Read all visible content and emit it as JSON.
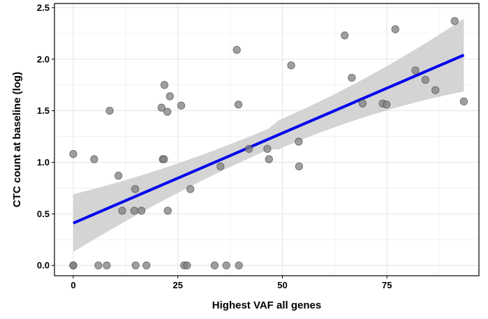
{
  "chart_data": {
    "type": "scatter",
    "title": "",
    "xlabel": "Highest VAF all genes",
    "ylabel": "CTC count at baseline (log)",
    "xlim": [
      -4.5,
      97
    ],
    "ylim": [
      -0.1,
      2.54
    ],
    "x_ticks": [
      0,
      25,
      50,
      75
    ],
    "y_ticks": [
      0.0,
      0.5,
      1.0,
      1.5,
      2.0,
      2.5
    ],
    "x_tick_labels": [
      "0",
      "25",
      "50",
      "75"
    ],
    "y_tick_labels": [
      "0.0",
      "0.5",
      "1.0",
      "1.5",
      "2.0",
      "2.5"
    ],
    "grid": true,
    "legend": "none",
    "point_color": "#7f7f7f",
    "fit_line_color": "#0000ee",
    "ribbon_color": "#cccccc",
    "points": [
      {
        "x": 0.0,
        "y": 1.08
      },
      {
        "x": 0.0,
        "y": 0.0
      },
      {
        "x": 0.0,
        "y": 0.0
      },
      {
        "x": 5.0,
        "y": 1.03
      },
      {
        "x": 6.0,
        "y": 0.0
      },
      {
        "x": 8.0,
        "y": 0.0
      },
      {
        "x": 8.7,
        "y": 1.5
      },
      {
        "x": 10.8,
        "y": 0.87
      },
      {
        "x": 11.7,
        "y": 0.53
      },
      {
        "x": 14.6,
        "y": 0.53
      },
      {
        "x": 14.8,
        "y": 0.74
      },
      {
        "x": 14.9,
        "y": 0.0
      },
      {
        "x": 16.3,
        "y": 0.53
      },
      {
        "x": 17.5,
        "y": 0.0
      },
      {
        "x": 21.1,
        "y": 1.53
      },
      {
        "x": 21.4,
        "y": 1.03
      },
      {
        "x": 21.7,
        "y": 1.03
      },
      {
        "x": 21.8,
        "y": 1.75
      },
      {
        "x": 22.5,
        "y": 1.49
      },
      {
        "x": 22.6,
        "y": 0.53
      },
      {
        "x": 23.1,
        "y": 1.64
      },
      {
        "x": 25.8,
        "y": 1.55
      },
      {
        "x": 26.5,
        "y": 0.0
      },
      {
        "x": 27.2,
        "y": 0.0
      },
      {
        "x": 28.0,
        "y": 0.74
      },
      {
        "x": 33.8,
        "y": 0.0
      },
      {
        "x": 35.2,
        "y": 0.96
      },
      {
        "x": 36.6,
        "y": 0.0
      },
      {
        "x": 39.1,
        "y": 2.09
      },
      {
        "x": 39.5,
        "y": 1.56
      },
      {
        "x": 39.6,
        "y": 0.0
      },
      {
        "x": 42.0,
        "y": 1.13
      },
      {
        "x": 46.4,
        "y": 1.13
      },
      {
        "x": 46.8,
        "y": 1.03
      },
      {
        "x": 52.1,
        "y": 1.94
      },
      {
        "x": 53.9,
        "y": 1.2
      },
      {
        "x": 54.0,
        "y": 0.96
      },
      {
        "x": 64.9,
        "y": 2.23
      },
      {
        "x": 66.6,
        "y": 1.82
      },
      {
        "x": 69.2,
        "y": 1.57
      },
      {
        "x": 74.0,
        "y": 1.57
      },
      {
        "x": 74.9,
        "y": 1.56
      },
      {
        "x": 77.0,
        "y": 2.29
      },
      {
        "x": 81.8,
        "y": 1.89
      },
      {
        "x": 84.2,
        "y": 1.8
      },
      {
        "x": 86.6,
        "y": 1.7
      },
      {
        "x": 91.2,
        "y": 2.37
      },
      {
        "x": 93.4,
        "y": 1.59
      }
    ],
    "fit": {
      "x": [
        0.0,
        93.4
      ],
      "y": [
        0.41,
        2.04
      ],
      "ci_lower": [
        0.13,
        1.65
      ],
      "ci_upper": [
        0.69,
        2.43
      ]
    }
  }
}
